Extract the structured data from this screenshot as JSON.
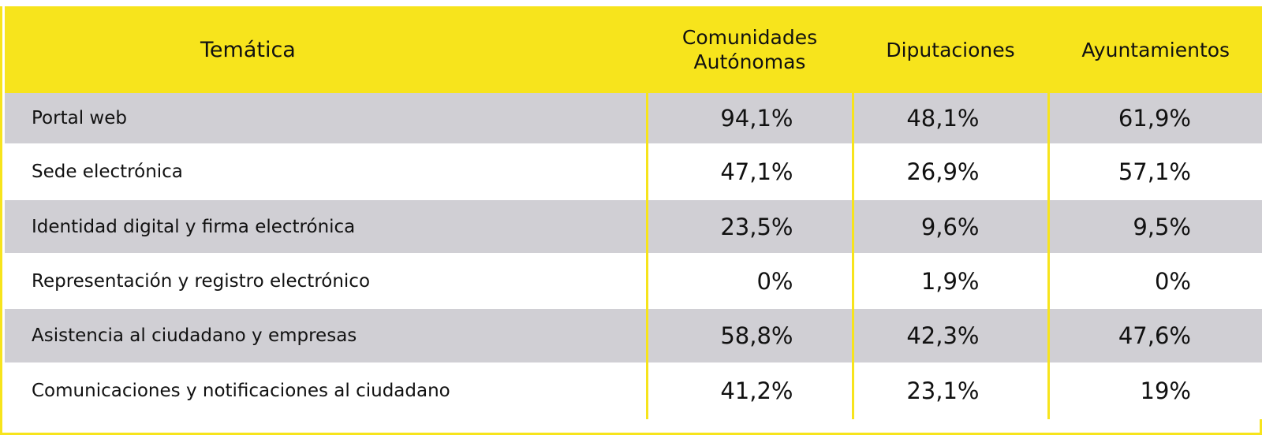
{
  "table": {
    "headers": [
      "Temática",
      "Comunidades Autónomas",
      "Diputaciones",
      "Ayuntamientos"
    ],
    "header_lines": {
      "comunidades_1": "Comunidades",
      "comunidades_2": "Autónomas"
    },
    "rows": [
      {
        "topic": "Portal web",
        "values": [
          "94,1%",
          "48,1%",
          "61,9%"
        ]
      },
      {
        "topic": "Sede electrónica",
        "values": [
          "47,1%",
          "26,9%",
          "57,1%"
        ]
      },
      {
        "topic": "Identidad digital y firma electrónica",
        "values": [
          "23,5%",
          "9,6%",
          "9,5%"
        ]
      },
      {
        "topic": "Representación y registro electrónico",
        "values": [
          "0%",
          "1,9%",
          "0%"
        ]
      },
      {
        "topic": "Asistencia al ciudadano y empresas",
        "values": [
          "58,8%",
          "42,3%",
          "47,6%"
        ]
      },
      {
        "topic": "Comunicaciones y notificaciones al ciudadano",
        "values": [
          "41,2%",
          "23,1%",
          "19%"
        ]
      }
    ]
  },
  "colors": {
    "header_bg": "#f7e41c",
    "row_grey": "#d0cfd4",
    "row_white": "#ffffff",
    "text": "#111111"
  }
}
